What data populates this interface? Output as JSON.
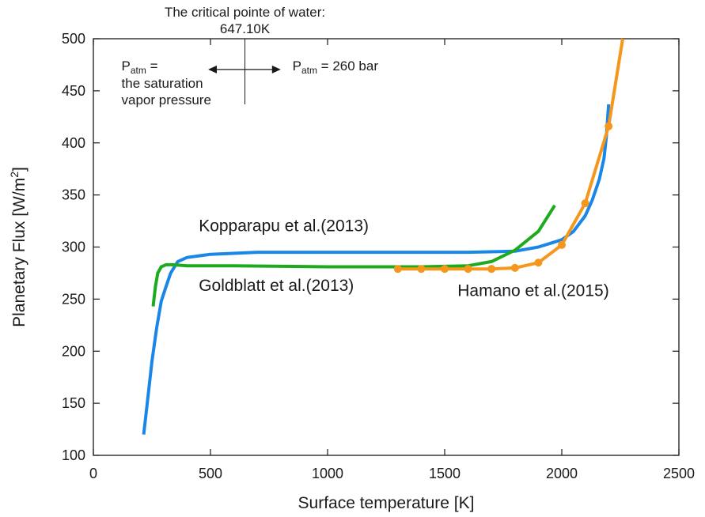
{
  "chart_data": {
    "type": "line",
    "title": "",
    "xlabel": "Surface temperature [K]",
    "ylabel": "Planetary Flux [W/m²]",
    "xlim": [
      0,
      2500
    ],
    "ylim": [
      100,
      500
    ],
    "xticks": [
      0,
      500,
      1000,
      1500,
      2000,
      2500
    ],
    "yticks": [
      100,
      150,
      200,
      250,
      300,
      350,
      400,
      450,
      500
    ],
    "grid": false,
    "legend": "none",
    "series": [
      {
        "name": "Kopparapu et al.(2013)",
        "color": "#1a87e8",
        "markers": false,
        "x": [
          215,
          230,
          250,
          270,
          290,
          310,
          330,
          360,
          400,
          500,
          700,
          1000,
          1300,
          1600,
          1800,
          1900,
          2000,
          2050,
          2100,
          2130,
          2160,
          2180,
          2190,
          2200
        ],
        "y": [
          120,
          150,
          190,
          222,
          248,
          262,
          275,
          286,
          290,
          293,
          295,
          295,
          295,
          295,
          296,
          300,
          307,
          315,
          330,
          345,
          365,
          385,
          405,
          437
        ]
      },
      {
        "name": "Goldblatt et al.(2013)",
        "color": "#1dab1d",
        "markers": false,
        "x": [
          255,
          265,
          275,
          290,
          310,
          340,
          400,
          600,
          1000,
          1400,
          1600,
          1700,
          1800,
          1900,
          1970
        ],
        "y": [
          243,
          262,
          275,
          281,
          283,
          283,
          282,
          282,
          281,
          281,
          282,
          286,
          297,
          315,
          340
        ]
      },
      {
        "name": "Hamano et al.(2015)",
        "color": "#f5971d",
        "markers": true,
        "x": [
          1300,
          1400,
          1500,
          1600,
          1700,
          1800,
          1900,
          2000,
          2100,
          2200,
          2260
        ],
        "y": [
          279,
          279,
          279,
          279,
          279,
          280,
          285,
          302,
          342,
          416,
          500
        ]
      }
    ],
    "critical_point": {
      "x": 647.1,
      "title_line1": "The critical pointe of water:",
      "title_line2": "647.10K",
      "left_label_symbol": "P",
      "left_label_sub": "atm",
      "left_label_line1": " =",
      "left_label_line2": "the saturation",
      "left_label_line3": "vapor pressure",
      "right_label_symbol": "P",
      "right_label_sub": "atm",
      "right_label_rest": " = 260 bar"
    }
  }
}
